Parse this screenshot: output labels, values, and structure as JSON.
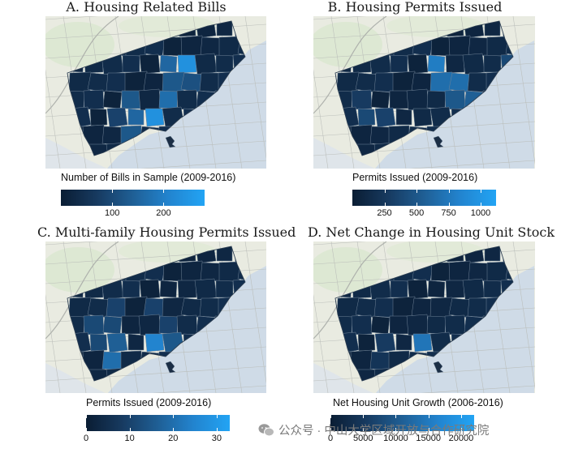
{
  "colors": {
    "low": "#0a1d33",
    "mid": "#1f5f95",
    "high": "#22a4f4",
    "water": "#cfdbe7",
    "land": "#e9ebe1",
    "border": "#6f8296"
  },
  "panels": [
    {
      "id": "a",
      "title": "A. Housing Related Bills",
      "legend_title": "Number of Bills in Sample (2009-2016)",
      "ticks": [
        100,
        200
      ],
      "range": [
        0,
        280
      ],
      "highlights": [
        [
          "r2c5",
          0.55
        ],
        [
          "r2c6",
          0.85
        ],
        [
          "r3c5",
          0.45
        ],
        [
          "r3c6",
          0.4
        ],
        [
          "r4c3",
          0.45
        ],
        [
          "r4c5",
          0.6
        ],
        [
          "r5c3",
          0.55
        ],
        [
          "r5c4",
          0.85
        ],
        [
          "r6c3",
          0.45
        ],
        [
          "r5c2",
          0.3
        ]
      ]
    },
    {
      "id": "b",
      "title": "B. Housing Permits Issued",
      "legend_title": "Permits Issued (2009-2016)",
      "ticks": [
        250,
        500,
        750,
        1000
      ],
      "range": [
        0,
        1120
      ],
      "highlights": [
        [
          "r2c5",
          0.7
        ],
        [
          "r3c5",
          0.6
        ],
        [
          "r3c6",
          0.6
        ],
        [
          "r4c6",
          0.45
        ],
        [
          "r4c7",
          0.5
        ],
        [
          "r2c9",
          0.35
        ],
        [
          "r5c1",
          0.35
        ],
        [
          "r5c2",
          0.3
        ],
        [
          "r4c1",
          0.25
        ]
      ]
    },
    {
      "id": "c",
      "title": "C. Multi-family Housing Permits Issued",
      "legend_title": "Permits Issued (2009-2016)",
      "ticks": [
        0,
        10,
        20,
        30
      ],
      "range": [
        0,
        33
      ],
      "highlights": [
        [
          "r3c2",
          0.3
        ],
        [
          "r4c1",
          0.35
        ],
        [
          "r4c2",
          0.35
        ],
        [
          "r5c2",
          0.5
        ],
        [
          "r5c4",
          0.75
        ],
        [
          "r5c5",
          0.45
        ],
        [
          "r6c2",
          0.6
        ],
        [
          "r3c4",
          0.3
        ],
        [
          "r4c5",
          0.3
        ],
        [
          "r5c1",
          0.35
        ]
      ]
    },
    {
      "id": "d",
      "title": "D. Net Change in Housing Unit Stock",
      "legend_title": "Net Housing Unit Growth (2006-2016)",
      "ticks": [
        0,
        5000,
        10000,
        15000,
        20000
      ],
      "range": [
        0,
        22000
      ],
      "highlights": [
        [
          "r5c4",
          0.65
        ],
        [
          "r5c2",
          0.25
        ],
        [
          "r6c2",
          0.2
        ]
      ]
    }
  ],
  "watermark": {
    "text": "公众号 · 中山大学区域开放与合作研究院",
    "icon": "chat-bubbles-icon"
  }
}
